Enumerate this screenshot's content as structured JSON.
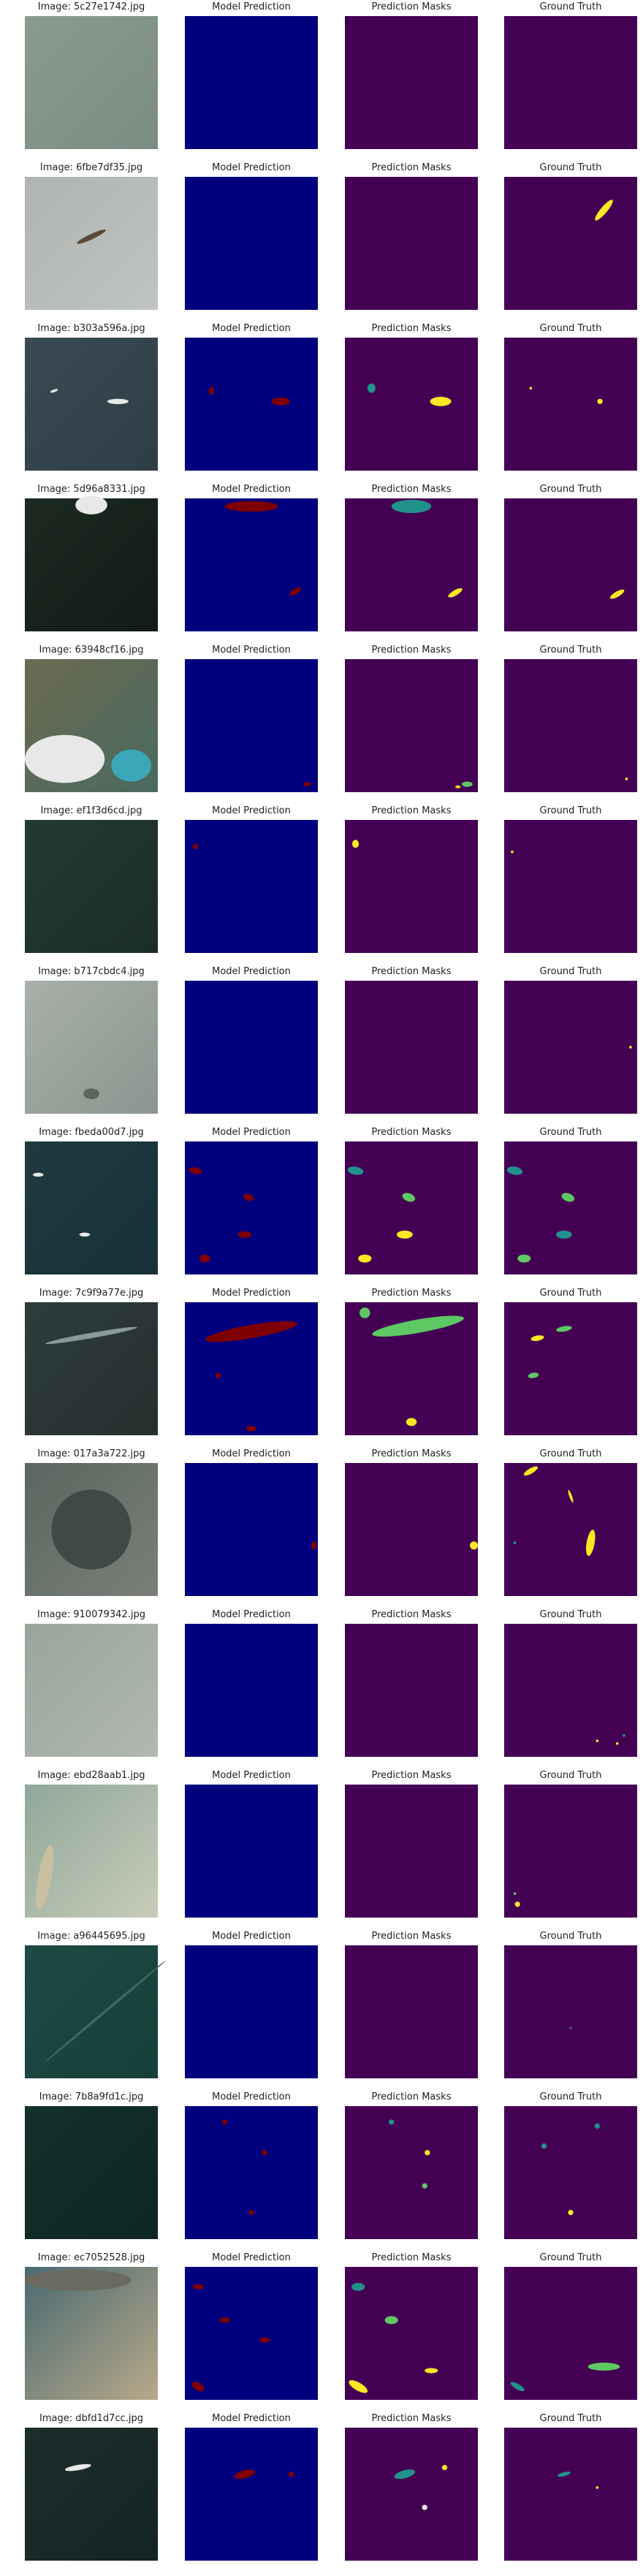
{
  "rows": [
    {
      "image_title": "Image: 5c27e1742.jpg"
    },
    {
      "image_title": "Image: 6fbe7df35.jpg"
    },
    {
      "image_title": "Image: b303a596a.jpg"
    },
    {
      "image_title": "Image: 5d96a8331.jpg"
    },
    {
      "image_title": "Image: 63948cf16.jpg"
    },
    {
      "image_title": "Image: ef1f3d6cd.jpg"
    },
    {
      "image_title": "Image: b717cbdc4.jpg"
    },
    {
      "image_title": "Image: fbeda00d7.jpg"
    },
    {
      "image_title": "Image: 7c9f9a77e.jpg"
    },
    {
      "image_title": "Image: 017a3a722.jpg"
    },
    {
      "image_title": "Image: 910079342.jpg"
    },
    {
      "image_title": "Image: ebd28aab1.jpg"
    },
    {
      "image_title": "Image: a96445695.jpg"
    },
    {
      "image_title": "Image: 7b8a9fd1c.jpg"
    },
    {
      "image_title": "Image: ec7052528.jpg"
    },
    {
      "image_title": "Image: dbfd1d7cc.jpg"
    }
  ],
  "column_titles": [
    "Model Prediction",
    "Prediction Masks",
    "Ground Truth"
  ]
}
